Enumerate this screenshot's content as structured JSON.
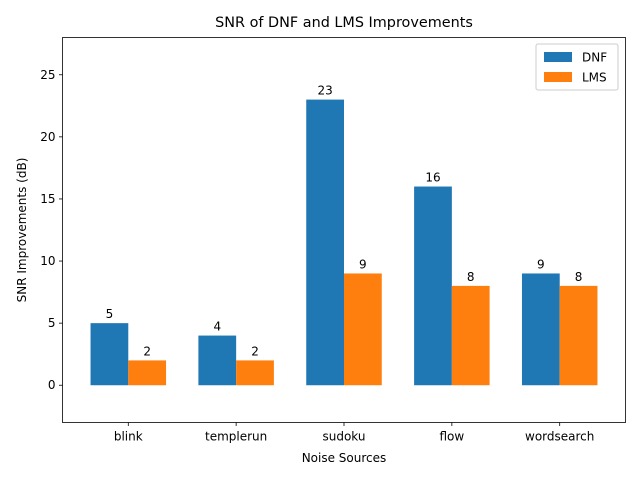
{
  "chart_data": {
    "type": "bar",
    "title": "SNR of DNF and LMS Improvements",
    "xlabel": "Noise Sources",
    "ylabel": "SNR Improvements (dB)",
    "categories": [
      "blink",
      "templerun",
      "sudoku",
      "flow",
      "wordsearch"
    ],
    "series": [
      {
        "name": "DNF",
        "values": [
          5,
          4,
          23,
          16,
          9
        ],
        "color": "#1f77b4"
      },
      {
        "name": "LMS",
        "values": [
          2,
          2,
          9,
          8,
          8
        ],
        "color": "#ff7f0e"
      }
    ],
    "ylim": [
      -3,
      28
    ],
    "yticks": [
      0,
      5,
      10,
      15,
      20,
      25
    ],
    "grid": false,
    "legend": "top-right"
  }
}
